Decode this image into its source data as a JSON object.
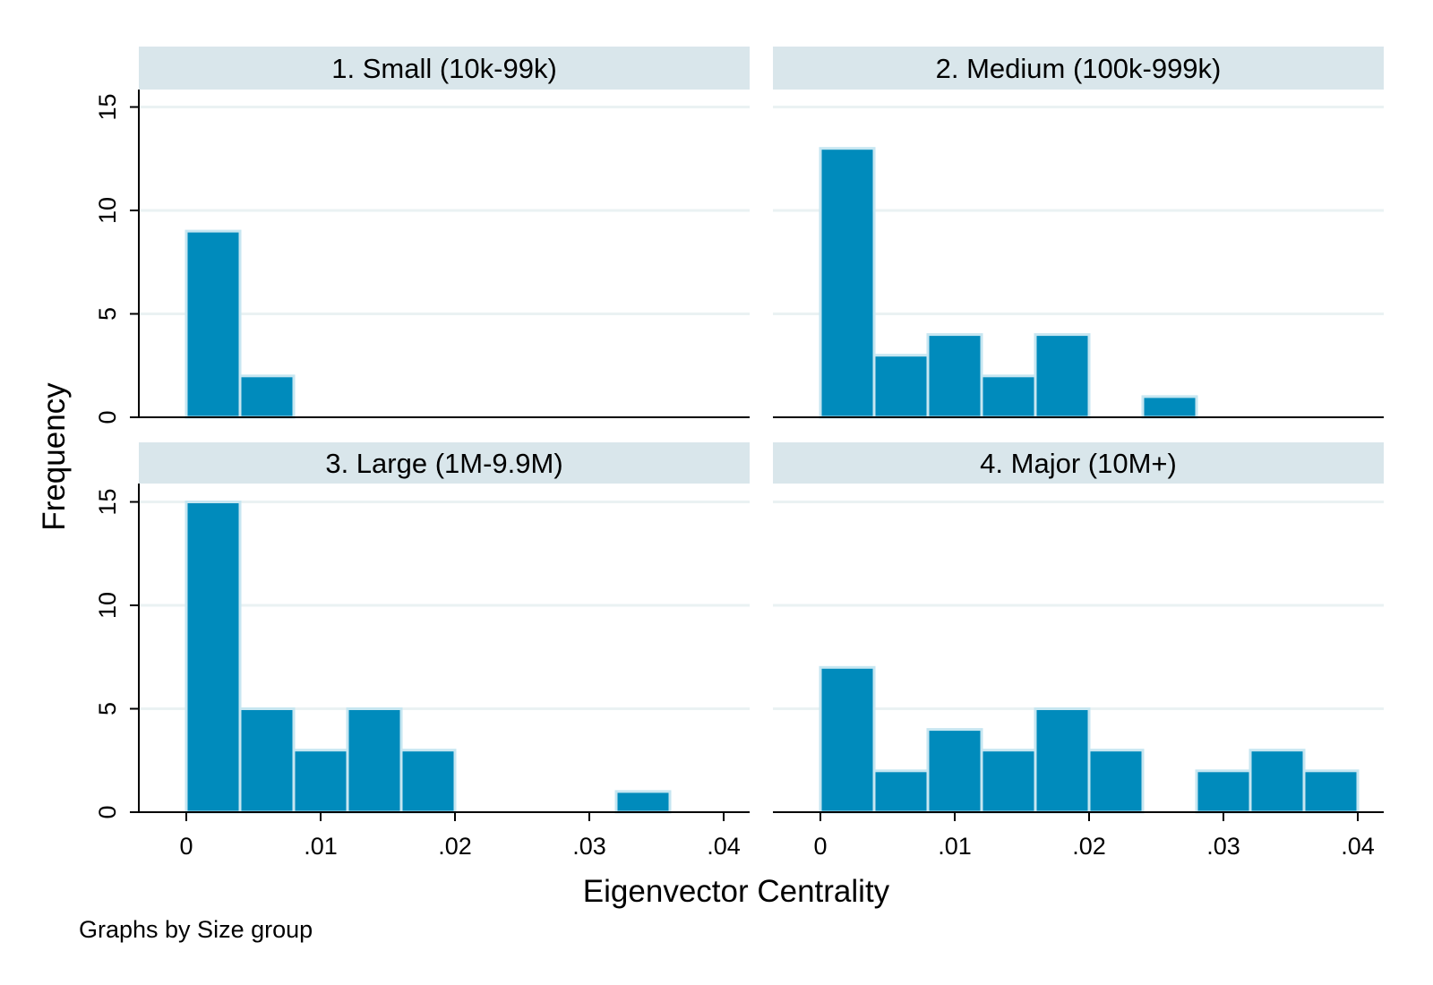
{
  "figure": {
    "xlabel": "Eigenvector Centrality",
    "ylabel": "Frequency",
    "note": "Graphs by Size group"
  },
  "colors": {
    "bar_fill": "#008bbc",
    "bar_edge": "#c6e6f1",
    "strip_fill": "#d9e6eb",
    "grid": "#eaf2f3",
    "axis": "#000000"
  },
  "chart_data": {
    "type": "bar",
    "subtype": "histogram-panels",
    "bin_width": 0.004,
    "xlim": [
      0,
      0.04
    ],
    "ylim": [
      0,
      15
    ],
    "xticks": [
      0,
      0.01,
      0.02,
      0.03,
      0.04
    ],
    "xtick_labels": [
      "0",
      ".01",
      ".02",
      ".03",
      ".04"
    ],
    "yticks": [
      0,
      5,
      10,
      15
    ],
    "ytick_labels": [
      "0",
      "5",
      "10",
      "15"
    ],
    "grid": true,
    "xlabel": "Eigenvector Centrality",
    "ylabel": "Frequency",
    "panels": [
      {
        "title": "1. Small (10k-99k)",
        "bins": [
          {
            "x0": 0.0,
            "x1": 0.004,
            "count": 9
          },
          {
            "x0": 0.004,
            "x1": 0.008,
            "count": 2
          }
        ]
      },
      {
        "title": "2. Medium (100k-999k)",
        "bins": [
          {
            "x0": 0.0,
            "x1": 0.004,
            "count": 13
          },
          {
            "x0": 0.004,
            "x1": 0.008,
            "count": 3
          },
          {
            "x0": 0.008,
            "x1": 0.012,
            "count": 4
          },
          {
            "x0": 0.012,
            "x1": 0.016,
            "count": 2
          },
          {
            "x0": 0.016,
            "x1": 0.02,
            "count": 4
          },
          {
            "x0": 0.024,
            "x1": 0.028,
            "count": 1
          }
        ]
      },
      {
        "title": "3. Large (1M-9.9M)",
        "bins": [
          {
            "x0": 0.0,
            "x1": 0.004,
            "count": 15
          },
          {
            "x0": 0.004,
            "x1": 0.008,
            "count": 5
          },
          {
            "x0": 0.008,
            "x1": 0.012,
            "count": 3
          },
          {
            "x0": 0.012,
            "x1": 0.016,
            "count": 5
          },
          {
            "x0": 0.016,
            "x1": 0.02,
            "count": 3
          },
          {
            "x0": 0.032,
            "x1": 0.036,
            "count": 1
          }
        ]
      },
      {
        "title": "4. Major (10M+)",
        "bins": [
          {
            "x0": 0.0,
            "x1": 0.004,
            "count": 7
          },
          {
            "x0": 0.004,
            "x1": 0.008,
            "count": 2
          },
          {
            "x0": 0.008,
            "x1": 0.012,
            "count": 4
          },
          {
            "x0": 0.012,
            "x1": 0.016,
            "count": 3
          },
          {
            "x0": 0.016,
            "x1": 0.02,
            "count": 5
          },
          {
            "x0": 0.02,
            "x1": 0.024,
            "count": 3
          },
          {
            "x0": 0.028,
            "x1": 0.032,
            "count": 2
          },
          {
            "x0": 0.032,
            "x1": 0.036,
            "count": 3
          },
          {
            "x0": 0.036,
            "x1": 0.04,
            "count": 2
          }
        ]
      }
    ]
  }
}
